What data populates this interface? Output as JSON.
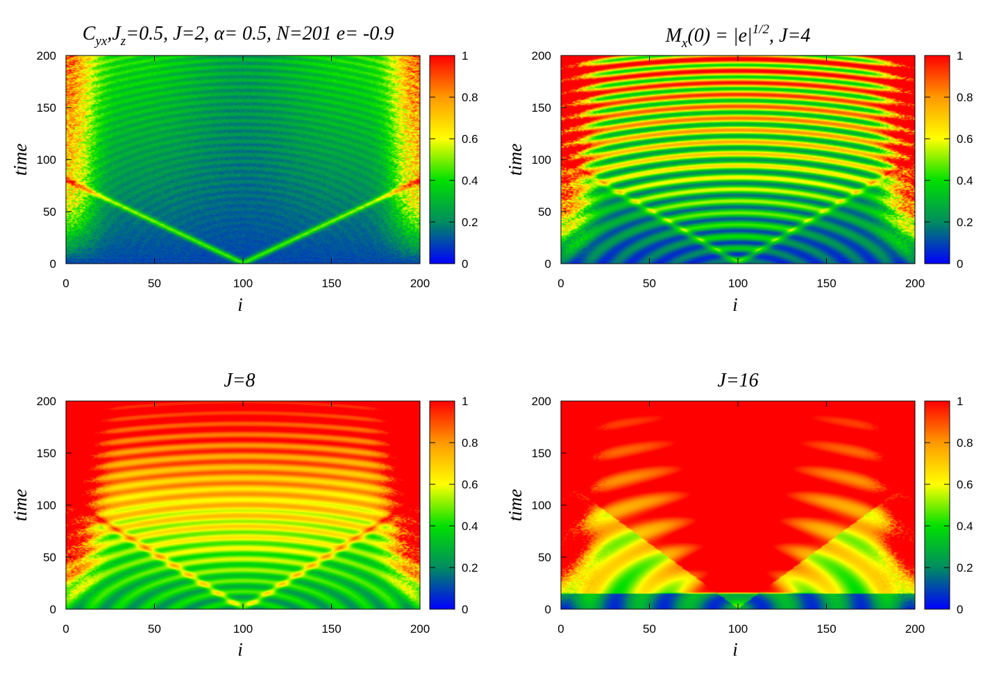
{
  "chart_data": [
    {
      "type": "heatmap",
      "title_parts": [
        "C",
        "yx",
        ",J",
        "z",
        "=0.5,  J=2, α= 0.5, N=201 e= -0.9"
      ],
      "xlabel": "i",
      "ylabel": "time",
      "xlim": [
        0,
        200
      ],
      "ylim": [
        0,
        200
      ],
      "xticks": [
        "0",
        "50",
        "100",
        "150",
        "200"
      ],
      "yticks": [
        "0",
        "50",
        "100",
        "150",
        "200"
      ],
      "colorbar": {
        "range": [
          0,
          1
        ],
        "ticks": [
          "0",
          "0.2",
          "0.4",
          "0.6",
          "0.8",
          "1"
        ]
      },
      "J": 2,
      "light_cone_speed": 1.25
    },
    {
      "type": "heatmap",
      "title_parts": [
        "M",
        "x",
        "(0) = |e|",
        "1/2",
        ",  J=4"
      ],
      "xlabel": "i",
      "ylabel": "time",
      "xlim": [
        0,
        200
      ],
      "ylim": [
        0,
        200
      ],
      "xticks": [
        "0",
        "50",
        "100",
        "150",
        "200"
      ],
      "yticks": [
        "0",
        "50",
        "100",
        "150",
        "200"
      ],
      "colorbar": {
        "range": [
          0,
          1
        ],
        "ticks": [
          "0",
          "0.2",
          "0.4",
          "0.6",
          "0.8",
          "1"
        ]
      },
      "J": 4,
      "light_cone_speed": 1.0
    },
    {
      "type": "heatmap",
      "title": "J=8",
      "xlabel": "i",
      "ylabel": "time",
      "xlim": [
        0,
        200
      ],
      "ylim": [
        0,
        200
      ],
      "xticks": [
        "0",
        "50",
        "100",
        "150",
        "200"
      ],
      "yticks": [
        "0",
        "50",
        "100",
        "150",
        "200"
      ],
      "colorbar": {
        "range": [
          0,
          1
        ],
        "ticks": [
          "0",
          "0.2",
          "0.4",
          "0.6",
          "0.8",
          "1"
        ]
      },
      "J": 8,
      "light_cone_speed": 0.95
    },
    {
      "type": "heatmap",
      "title": "J=16",
      "xlabel": "i",
      "ylabel": "time",
      "xlim": [
        0,
        200
      ],
      "ylim": [
        0,
        200
      ],
      "xticks": [
        "0",
        "50",
        "100",
        "150",
        "200"
      ],
      "yticks": [
        "0",
        "50",
        "100",
        "150",
        "200"
      ],
      "colorbar": {
        "range": [
          0,
          1
        ],
        "ticks": [
          "0",
          "0.2",
          "0.4",
          "0.6",
          "0.8",
          "1"
        ]
      },
      "J": 16,
      "light_cone_speed": 0.8
    }
  ],
  "colormap": [
    "#0000ff",
    "#008c60",
    "#00e000",
    "#ffff00",
    "#ff9900",
    "#ff0000"
  ]
}
